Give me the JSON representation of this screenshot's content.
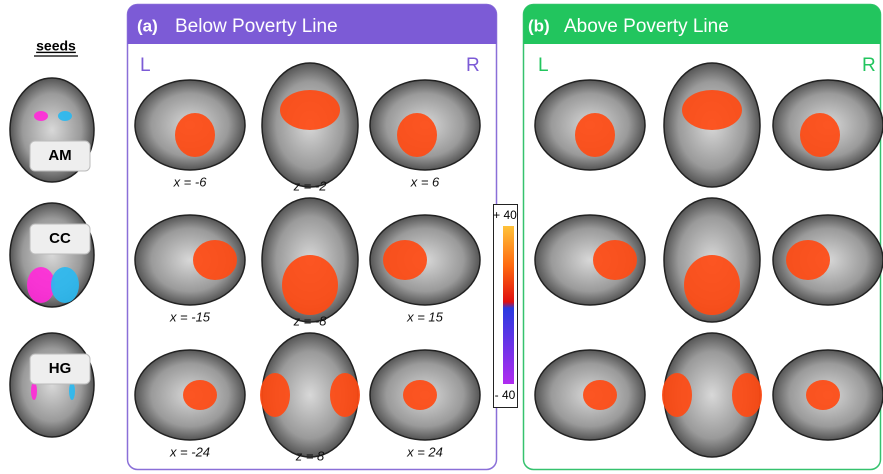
{
  "seeds": {
    "title": "seeds",
    "items": [
      "AM",
      "CC",
      "HG"
    ]
  },
  "panels": [
    {
      "tag": "(a)",
      "title": "Below Poverty Line",
      "left": "L",
      "right": "R",
      "slices": [
        "x = -6",
        "z = -2",
        "x = 6",
        "x = -15",
        "z = -8",
        "x = 15",
        "x = -24",
        "z = 8",
        "x = 24"
      ]
    },
    {
      "tag": "(b)",
      "title": "Above Poverty Line",
      "left": "L",
      "right": "R"
    }
  ],
  "colorbar": {
    "max": "+ 40",
    "min": "- 40"
  }
}
